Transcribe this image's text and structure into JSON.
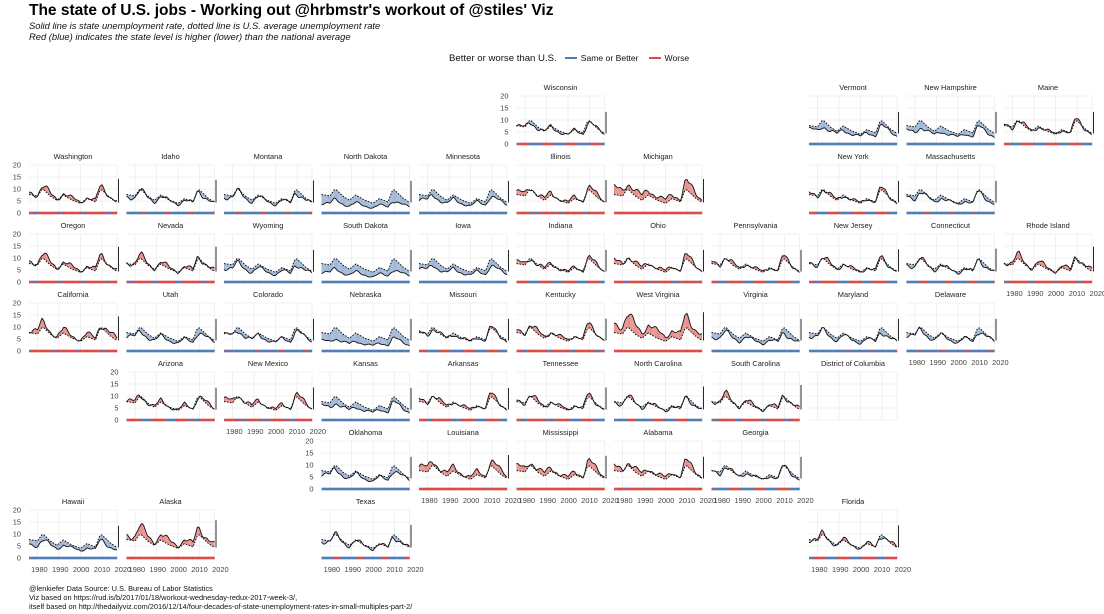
{
  "title": "The state of U.S. jobs - Working out @hrbmstr's workout of @stiles' Viz",
  "subtitle_lines": [
    "Solid line is state unemployment rate, dotted line is U.S. average unemployment rate",
    "Red (blue) indicates the state level is higher (lower) than the national average"
  ],
  "legend": {
    "title": "Better or worse than U.S.",
    "items": [
      {
        "label": "Same or Better",
        "color": "#4f7cb5"
      },
      {
        "label": "Worse",
        "color": "#d94a44"
      }
    ],
    "position": "top"
  },
  "caption_lines": [
    "@lenkiefer Data Source: U.S. Bureau of Labor Statistics",
    "Viz based on https://rud.is/b/2017/01/18/workout-wednesday-redux-2017-week-3/,",
    "itself based on http://thedailyviz.com/2016/12/14/four-decades-of-state-unemployment-rates-in-small-multiples-part-2/"
  ],
  "colors": {
    "better_fill": "#9fb7d8",
    "worse_fill": "#e88f8b",
    "better_bar": "#4f7cb5",
    "worse_bar": "#d94a44",
    "grid": "#ebebeb"
  },
  "chart_data": {
    "type": "area",
    "description": "Small multiples tile grid map of U.S. states; each panel shows state unemployment rate (solid) vs U.S. average (dotted), 1976-2017",
    "x_ticks": [
      1980,
      1990,
      2000,
      2010,
      2020
    ],
    "y_ticks": [
      0,
      5,
      10,
      15,
      20
    ],
    "xlim": [
      1976,
      2017
    ],
    "ylim": [
      0,
      20
    ],
    "grid": true,
    "us_average": {
      "x": [
        1976,
        1980,
        1982,
        1983,
        1986,
        1989,
        1992,
        1996,
        2000,
        2003,
        2007,
        2009,
        2010,
        2014,
        2017
      ],
      "y": [
        7.7,
        7.1,
        9.7,
        9.6,
        7.0,
        5.3,
        7.5,
        5.4,
        4.0,
        6.0,
        4.6,
        9.3,
        9.6,
        6.2,
        4.4
      ]
    },
    "states": [
      {
        "name": "Wisconsin",
        "row": 0,
        "col": 5,
        "factor": 0.95,
        "show_y_axis": true,
        "show_x_axis": false
      },
      {
        "name": "Vermont",
        "row": 0,
        "col": 8,
        "factor": 0.78,
        "show_y_axis": false,
        "show_x_axis": false
      },
      {
        "name": "New Hampshire",
        "row": 0,
        "col": 9,
        "factor": 0.72,
        "show_y_axis": false,
        "show_x_axis": false
      },
      {
        "name": "Maine",
        "row": 0,
        "col": 10,
        "factor": 1.02,
        "show_y_axis": false,
        "show_x_axis": false
      },
      {
        "name": "Washington",
        "row": 1,
        "col": 0,
        "factor": 1.12,
        "show_y_axis": true,
        "show_x_axis": false
      },
      {
        "name": "Idaho",
        "row": 1,
        "col": 1,
        "factor": 0.92,
        "show_y_axis": false,
        "show_x_axis": false
      },
      {
        "name": "Montana",
        "row": 1,
        "col": 2,
        "factor": 0.9,
        "show_y_axis": false,
        "show_x_axis": false
      },
      {
        "name": "North Dakota",
        "row": 1,
        "col": 3,
        "factor": 0.55,
        "show_y_axis": false,
        "show_x_axis": false
      },
      {
        "name": "Minnesota",
        "row": 1,
        "col": 4,
        "factor": 0.75,
        "show_y_axis": false,
        "show_x_axis": false
      },
      {
        "name": "Illinois",
        "row": 1,
        "col": 5,
        "factor": 1.12,
        "show_y_axis": false,
        "show_x_axis": false
      },
      {
        "name": "Michigan",
        "row": 1,
        "col": 6,
        "factor": 1.32,
        "show_y_axis": false,
        "show_x_axis": false
      },
      {
        "name": "New York",
        "row": 1,
        "col": 8,
        "factor": 1.03,
        "show_y_axis": false,
        "show_x_axis": false
      },
      {
        "name": "Massachusetts",
        "row": 1,
        "col": 9,
        "factor": 0.88,
        "show_y_axis": false,
        "show_x_axis": false
      },
      {
        "name": "Oregon",
        "row": 2,
        "col": 0,
        "factor": 1.15,
        "show_y_axis": true,
        "show_x_axis": false
      },
      {
        "name": "Nevada",
        "row": 2,
        "col": 1,
        "factor": 1.1,
        "show_y_axis": false,
        "show_x_axis": false
      },
      {
        "name": "Wyoming",
        "row": 2,
        "col": 2,
        "factor": 0.78,
        "show_y_axis": false,
        "show_x_axis": false
      },
      {
        "name": "South Dakota",
        "row": 2,
        "col": 3,
        "factor": 0.55,
        "show_y_axis": false,
        "show_x_axis": false
      },
      {
        "name": "Iowa",
        "row": 2,
        "col": 4,
        "factor": 0.72,
        "show_y_axis": false,
        "show_x_axis": false
      },
      {
        "name": "Indiana",
        "row": 2,
        "col": 5,
        "factor": 1.05,
        "show_y_axis": false,
        "show_x_axis": false
      },
      {
        "name": "Ohio",
        "row": 2,
        "col": 6,
        "factor": 1.12,
        "show_y_axis": false,
        "show_x_axis": false
      },
      {
        "name": "Pennsylvania",
        "row": 2,
        "col": 7,
        "factor": 1.06,
        "show_y_axis": false,
        "show_x_axis": false
      },
      {
        "name": "New Jersey",
        "row": 2,
        "col": 8,
        "factor": 1.04,
        "show_y_axis": false,
        "show_x_axis": false
      },
      {
        "name": "Connecticut",
        "row": 2,
        "col": 9,
        "factor": 0.95,
        "show_y_axis": false,
        "show_x_axis": false
      },
      {
        "name": "Rhode Island",
        "row": 2,
        "col": 10,
        "factor": 1.12,
        "show_y_axis": false,
        "show_x_axis": true
      },
      {
        "name": "California",
        "row": 3,
        "col": 0,
        "factor": 1.18,
        "show_y_axis": true,
        "show_x_axis": false
      },
      {
        "name": "Utah",
        "row": 3,
        "col": 1,
        "factor": 0.82,
        "show_y_axis": false,
        "show_x_axis": false
      },
      {
        "name": "Colorado",
        "row": 3,
        "col": 2,
        "factor": 0.88,
        "show_y_axis": false,
        "show_x_axis": false
      },
      {
        "name": "Nebraska",
        "row": 3,
        "col": 3,
        "factor": 0.55,
        "show_y_axis": false,
        "show_x_axis": false
      },
      {
        "name": "Missouri",
        "row": 3,
        "col": 4,
        "factor": 0.98,
        "show_y_axis": false,
        "show_x_axis": false
      },
      {
        "name": "Kentucky",
        "row": 3,
        "col": 5,
        "factor": 1.12,
        "show_y_axis": false,
        "show_x_axis": false
      },
      {
        "name": "West Virginia",
        "row": 3,
        "col": 6,
        "factor": 1.5,
        "show_y_axis": false,
        "show_x_axis": false
      },
      {
        "name": "Virginia",
        "row": 3,
        "col": 7,
        "factor": 0.78,
        "show_y_axis": false,
        "show_x_axis": false
      },
      {
        "name": "Maryland",
        "row": 3,
        "col": 8,
        "factor": 0.85,
        "show_y_axis": false,
        "show_x_axis": false
      },
      {
        "name": "Delaware",
        "row": 3,
        "col": 9,
        "factor": 0.88,
        "show_y_axis": false,
        "show_x_axis": true
      },
      {
        "name": "Arizona",
        "row": 4,
        "col": 1,
        "factor": 1.05,
        "show_y_axis": true,
        "show_x_axis": false
      },
      {
        "name": "New Mexico",
        "row": 4,
        "col": 2,
        "factor": 1.1,
        "show_y_axis": false,
        "show_x_axis": true
      },
      {
        "name": "Kansas",
        "row": 4,
        "col": 3,
        "factor": 0.75,
        "show_y_axis": false,
        "show_x_axis": false
      },
      {
        "name": "Arkansas",
        "row": 4,
        "col": 4,
        "factor": 1.08,
        "show_y_axis": false,
        "show_x_axis": false
      },
      {
        "name": "Tennessee",
        "row": 4,
        "col": 5,
        "factor": 1.06,
        "show_y_axis": false,
        "show_x_axis": false
      },
      {
        "name": "North Carolina",
        "row": 4,
        "col": 6,
        "factor": 0.98,
        "show_y_axis": false,
        "show_x_axis": false
      },
      {
        "name": "South Carolina",
        "row": 4,
        "col": 7,
        "factor": 1.08,
        "show_y_axis": false,
        "show_x_axis": false
      },
      {
        "name": "District of Columbia",
        "row": 4,
        "col": 8,
        "factor": 1.3,
        "show_y_axis": false,
        "show_x_axis": false,
        "no_data": true
      },
      {
        "name": "Oklahoma",
        "row": 5,
        "col": 3,
        "factor": 0.82,
        "show_y_axis": true,
        "show_x_axis": false
      },
      {
        "name": "Louisiana",
        "row": 5,
        "col": 4,
        "factor": 1.22,
        "show_y_axis": false,
        "show_x_axis": true
      },
      {
        "name": "Mississippi",
        "row": 5,
        "col": 5,
        "factor": 1.2,
        "show_y_axis": false,
        "show_x_axis": true
      },
      {
        "name": "Alabama",
        "row": 5,
        "col": 6,
        "factor": 1.18,
        "show_y_axis": false,
        "show_x_axis": true
      },
      {
        "name": "Georgia",
        "row": 5,
        "col": 7,
        "factor": 0.95,
        "show_y_axis": false,
        "show_x_axis": true
      },
      {
        "name": "Hawaii",
        "row": 6,
        "col": 0,
        "factor": 0.75,
        "show_y_axis": true,
        "show_x_axis": true
      },
      {
        "name": "Alaska",
        "row": 6,
        "col": 1,
        "factor": 1.3,
        "show_y_axis": false,
        "show_x_axis": true
      },
      {
        "name": "Texas",
        "row": 6,
        "col": 3,
        "factor": 0.95,
        "show_y_axis": false,
        "show_x_axis": true
      },
      {
        "name": "Florida",
        "row": 6,
        "col": 8,
        "factor": 1.02,
        "show_y_axis": false,
        "show_x_axis": true
      }
    ]
  }
}
